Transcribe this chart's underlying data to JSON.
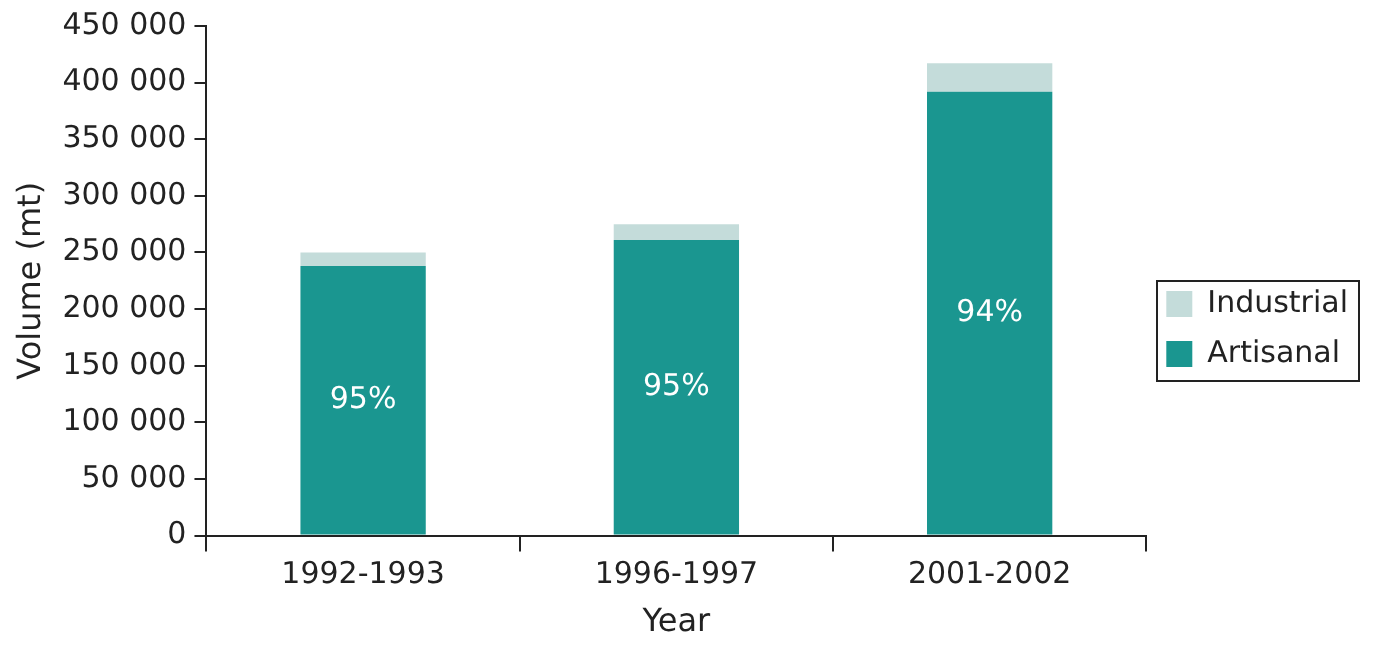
{
  "chart_data": {
    "type": "bar",
    "stacked": true,
    "xlabel": "Year",
    "ylabel": "Volume (mt)",
    "categories": [
      "1992-1993",
      "1996-1997",
      "2001-2002"
    ],
    "series": [
      {
        "name": "Artisanal",
        "color": "#1a9690",
        "values": [
          238000,
          261000,
          392000
        ]
      },
      {
        "name": "Industrial",
        "color": "#c4dcda",
        "values": [
          12000,
          14000,
          25000
        ]
      }
    ],
    "ylim": [
      0,
      450000
    ],
    "yticks": [
      0,
      {
        "value": 50000,
        "label": "50 000"
      },
      {
        "value": 100000,
        "label": "100 000"
      },
      {
        "value": 150000,
        "label": "150 000"
      },
      {
        "value": 200000,
        "label": "200 000"
      },
      {
        "value": 250000,
        "label": "250 000"
      },
      {
        "value": 300000,
        "label": "300 000"
      },
      {
        "value": 350000,
        "label": "350 000"
      },
      {
        "value": 400000,
        "label": "400 000"
      },
      {
        "value": 450000,
        "label": "450 000"
      }
    ],
    "annotations": [
      "95%",
      "95%",
      "94%"
    ],
    "grid": false,
    "legend": "right"
  }
}
